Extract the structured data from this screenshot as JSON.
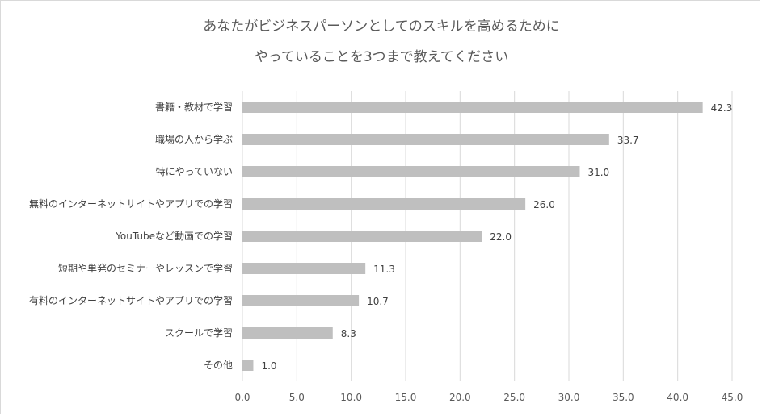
{
  "chart_data": {
    "type": "bar",
    "orientation": "horizontal",
    "title_lines": [
      "あなたがビジネスパーソンとしてのスキルを高めるために",
      "やっていることを3つまで教えてください"
    ],
    "categories": [
      "書籍・教材で学習",
      "職場の人から学ぶ",
      "特にやっていない",
      "無料のインターネットサイトやアプリでの学習",
      "YouTubeなど動画での学習",
      "短期や単発のセミナーやレッスンで学習",
      "有料のインターネットサイトやアプリでの学習",
      "スクールで学習",
      "その他"
    ],
    "values": [
      42.3,
      33.7,
      31.0,
      26.0,
      22.0,
      11.3,
      10.7,
      8.3,
      1.0
    ],
    "value_labels": [
      "42.3",
      "33.7",
      "31.0",
      "26.0",
      "22.0",
      "11.3",
      "10.7",
      "8.3",
      "1.0"
    ],
    "xlim": [
      0,
      45
    ],
    "x_ticks": [
      "0.0",
      "5.0",
      "10.0",
      "15.0",
      "20.0",
      "25.0",
      "30.0",
      "35.0",
      "40.0",
      "45.0"
    ],
    "x_tick_values": [
      0,
      5,
      10,
      15,
      20,
      25,
      30,
      35,
      40,
      45
    ],
    "grid": true,
    "legend": "none",
    "bar_color": "#bfbfbf",
    "grid_color": "#d9d9d9"
  }
}
